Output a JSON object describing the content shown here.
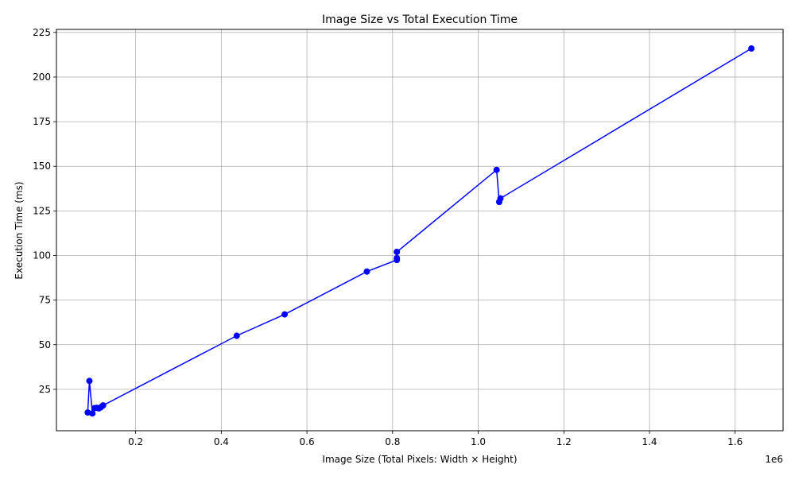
{
  "chart_data": {
    "type": "line",
    "title": "Image Size vs Total Execution Time",
    "xlabel": "Image Size (Total Pixels: Width × Height)",
    "ylabel": "Execution Time (ms)",
    "x_offset_label": "1e6",
    "xlim": [
      15000,
      1712000
    ],
    "ylim": [
      1.8,
      226.7
    ],
    "xticks": [
      200000,
      400000,
      600000,
      800000,
      1000000,
      1200000,
      1400000,
      1600000
    ],
    "xtick_labels": [
      "0.2",
      "0.4",
      "0.6",
      "0.8",
      "1.0",
      "1.2",
      "1.4",
      "1.6"
    ],
    "yticks": [
      25,
      50,
      75,
      100,
      125,
      150,
      175,
      200,
      225
    ],
    "ytick_labels": [
      "25",
      "50",
      "75",
      "100",
      "125",
      "150",
      "175",
      "200",
      "225"
    ],
    "grid": true,
    "colors": {
      "series": "#0000ff",
      "grid": "#b0b0b0",
      "axis": "#000000"
    },
    "series": [
      {
        "name": "",
        "marker": "circle",
        "x": [
          88000,
          92000,
          99000,
          104000,
          109000,
          114000,
          119000,
          124000,
          436000,
          548000,
          740000,
          810000,
          810000,
          810000,
          1043000,
          1049000,
          1052000,
          1638000
        ],
        "y": [
          12,
          29.7,
          11.5,
          14.5,
          14.6,
          14.3,
          15.0,
          16.0,
          55,
          67,
          91,
          97.5,
          98.5,
          102,
          148,
          130,
          132,
          216
        ]
      }
    ]
  }
}
